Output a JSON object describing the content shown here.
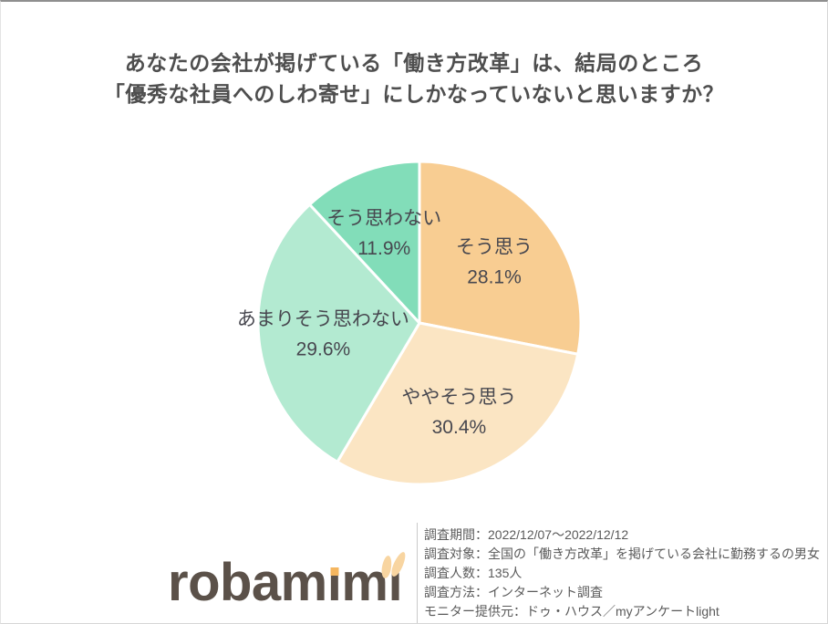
{
  "page": {
    "background": "#ffffff"
  },
  "header": {
    "title_line1": "あなたの会社が掲げている「働き方改革」は、結局のところ",
    "title_line2": "「優秀な社員へのしわ寄せ」にしかなっていないと思いますか？"
  },
  "chart_data": {
    "type": "pie",
    "title": "あなたの会社が掲げている「働き方改革」は、結局のところ「優秀な社員へのしわ寄せ」にしかなっていないと思いますか？",
    "categories": [
      "そう思う",
      "ややそう思う",
      "あまりそう思わない",
      "そう思わない"
    ],
    "values": [
      28.1,
      30.4,
      29.6,
      11.9
    ],
    "unit": "%",
    "colors": [
      "#F8CD92",
      "#FBE5C3",
      "#B3EAD1",
      "#82DDB9"
    ],
    "start_angle_deg": 0,
    "direction": "clockwise",
    "labels_position": "inside",
    "label_color": "#47474f",
    "slice_border_color": "#ffffff",
    "legend": "none"
  },
  "footer": {
    "logo": {
      "text": "robamimi",
      "part1": "robam",
      "i_char": "ı",
      "part2": "m",
      "color": "#5B5149",
      "dot_color": "#F5B65F",
      "ear_color": "#F8D5A1"
    },
    "survey_info": [
      "調査期間：2022/12/07～2022/12/12",
      "調査対象：全国の「働き方改革」を掲げている会社に勤務するの男女",
      "調査人数：135人",
      "調査方法：インターネット調査",
      "モニター提供元：ドゥ・ハウス／myアンケートlight"
    ]
  }
}
